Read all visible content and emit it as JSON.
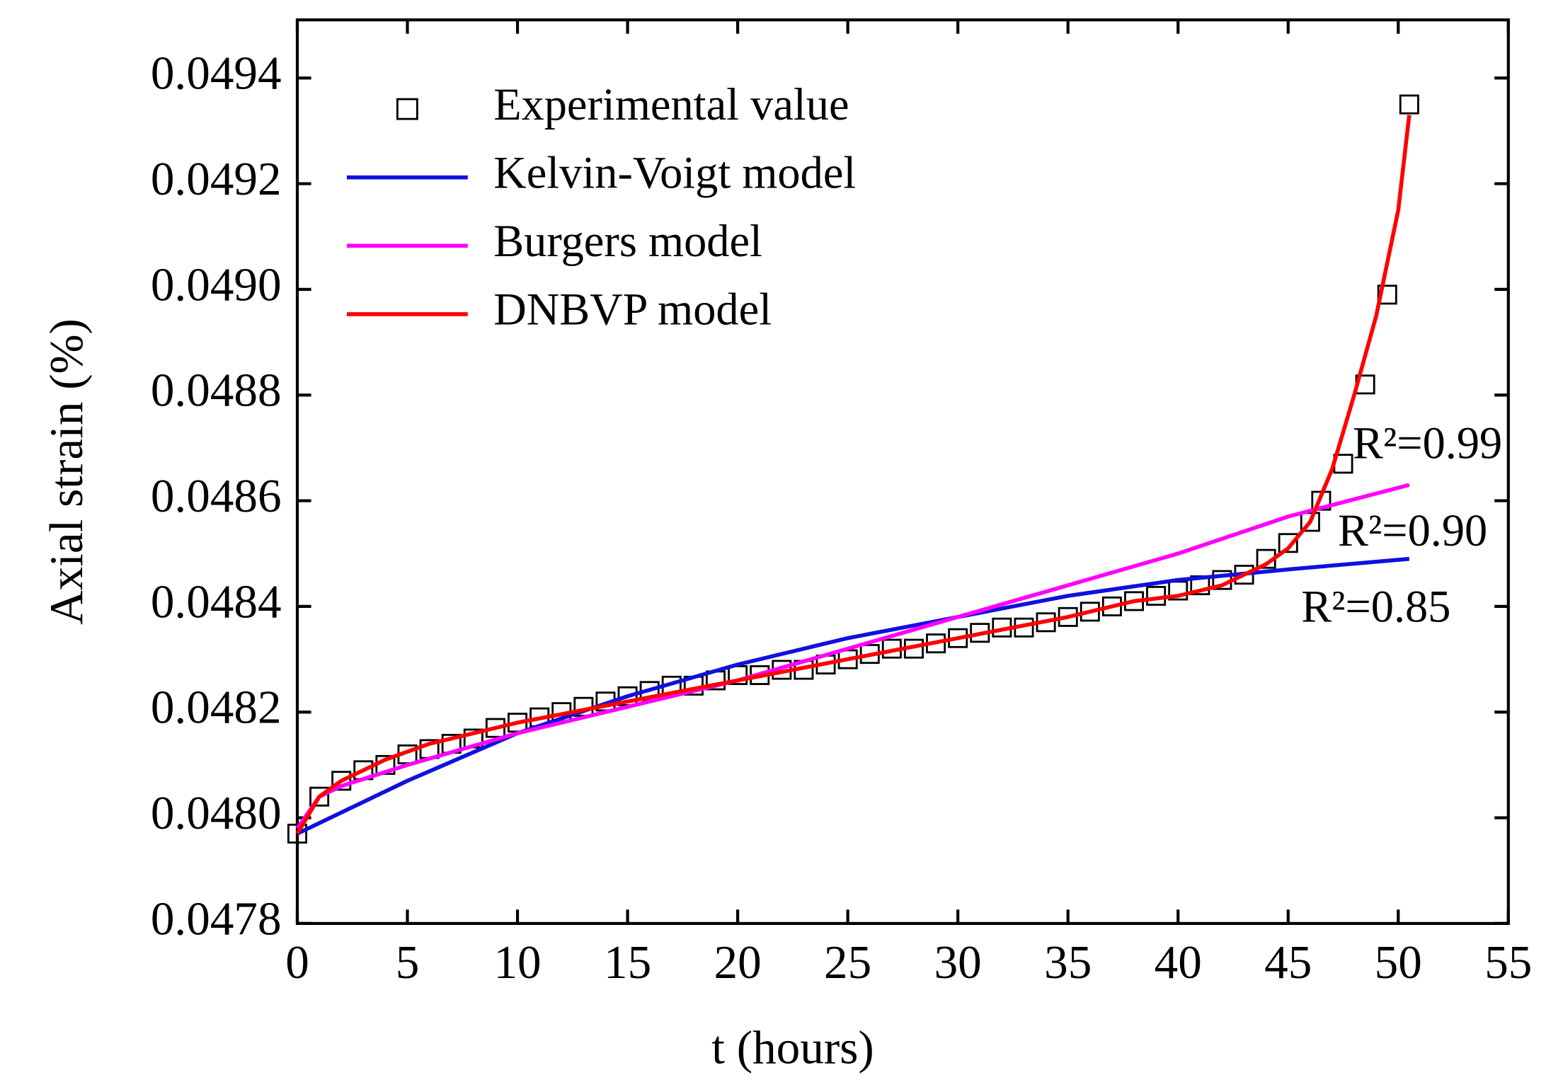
{
  "chart_data": {
    "type": "line",
    "xlabel": "t (hours)",
    "ylabel": "Axial strain (%)",
    "xlim": [
      0,
      55
    ],
    "xticks": [
      0,
      5,
      10,
      15,
      20,
      25,
      30,
      35,
      40,
      45,
      50,
      55
    ],
    "ylim": [
      0.0478,
      0.04951
    ],
    "yticks": [
      0.0478,
      {
        "value": 0.048,
        "label": "0.0480"
      },
      0.0482,
      0.0484,
      0.0486,
      0.0488,
      {
        "value": 0.049,
        "label": "0.0490"
      },
      0.0492,
      0.0494
    ],
    "legend": "upper left",
    "grid": false,
    "series": [
      {
        "name": "Experimental value",
        "color": "#000000",
        "marker": "square",
        "x": [
          0,
          1,
          2,
          3,
          4,
          5,
          6,
          7,
          8,
          9,
          10,
          11,
          12,
          13,
          14,
          15,
          16,
          17,
          18,
          19,
          20,
          21,
          22,
          23,
          24,
          25,
          26,
          27,
          28,
          29,
          30,
          31,
          32,
          33,
          34,
          35,
          36,
          37,
          38,
          39,
          40,
          41,
          42,
          43,
          44,
          45,
          46,
          46.5,
          47.5,
          48.5,
          49.5,
          50.5
        ],
        "values": [
          0.04797,
          0.04804,
          0.04807,
          0.04809,
          0.0481,
          0.04812,
          0.04813,
          0.04814,
          0.04815,
          0.04817,
          0.04818,
          0.04819,
          0.0482,
          0.04821,
          0.04822,
          0.04823,
          0.04824,
          0.04825,
          0.04825,
          0.04826,
          0.04827,
          0.04827,
          0.04828,
          0.04828,
          0.04829,
          0.0483,
          0.04831,
          0.04832,
          0.04832,
          0.04833,
          0.04834,
          0.04835,
          0.04836,
          0.04836,
          0.04837,
          0.04838,
          0.04839,
          0.0484,
          0.04841,
          0.04842,
          0.04843,
          0.04844,
          0.04845,
          0.04846,
          0.04849,
          0.04852,
          0.04856,
          0.0486,
          0.04867,
          0.04882,
          0.04899,
          0.04935
        ]
      },
      {
        "name": "Kelvin-Voigt model",
        "color": "#1010e0",
        "x": [
          0,
          5,
          10,
          15,
          20,
          25,
          30,
          35,
          40,
          45,
          50.5
        ],
        "values": [
          0.04797,
          0.04807,
          0.04816,
          0.04823,
          0.04829,
          0.04834,
          0.04838,
          0.04842,
          0.04845,
          0.04847,
          0.04849
        ]
      },
      {
        "name": "Burgers model",
        "color": "#ff00ff",
        "x": [
          0,
          1,
          2,
          5,
          10,
          15,
          20,
          25,
          30,
          35,
          40,
          45,
          50.5
        ],
        "values": [
          0.04798,
          0.04804,
          0.04806,
          0.0481,
          0.04816,
          0.04821,
          0.04826,
          0.04832,
          0.04838,
          0.04844,
          0.0485,
          0.04857,
          0.04863
        ]
      },
      {
        "name": "DNBVP model",
        "color": "#ff0000",
        "x": [
          0,
          1,
          2,
          4,
          6,
          10,
          15,
          20,
          25,
          30,
          35,
          38,
          40,
          42,
          44,
          45,
          46,
          47,
          48,
          49,
          50,
          50.5
        ],
        "values": [
          0.04797,
          0.04804,
          0.04807,
          0.04811,
          0.04814,
          0.04818,
          0.04822,
          0.04826,
          0.0483,
          0.04834,
          0.04838,
          0.04841,
          0.04842,
          0.04844,
          0.04848,
          0.04851,
          0.04856,
          0.04866,
          0.0488,
          0.04895,
          0.04915,
          0.04933
        ]
      }
    ],
    "annotations": [
      "R²=0.99",
      "R²=0.90",
      "R²=0.85"
    ]
  }
}
